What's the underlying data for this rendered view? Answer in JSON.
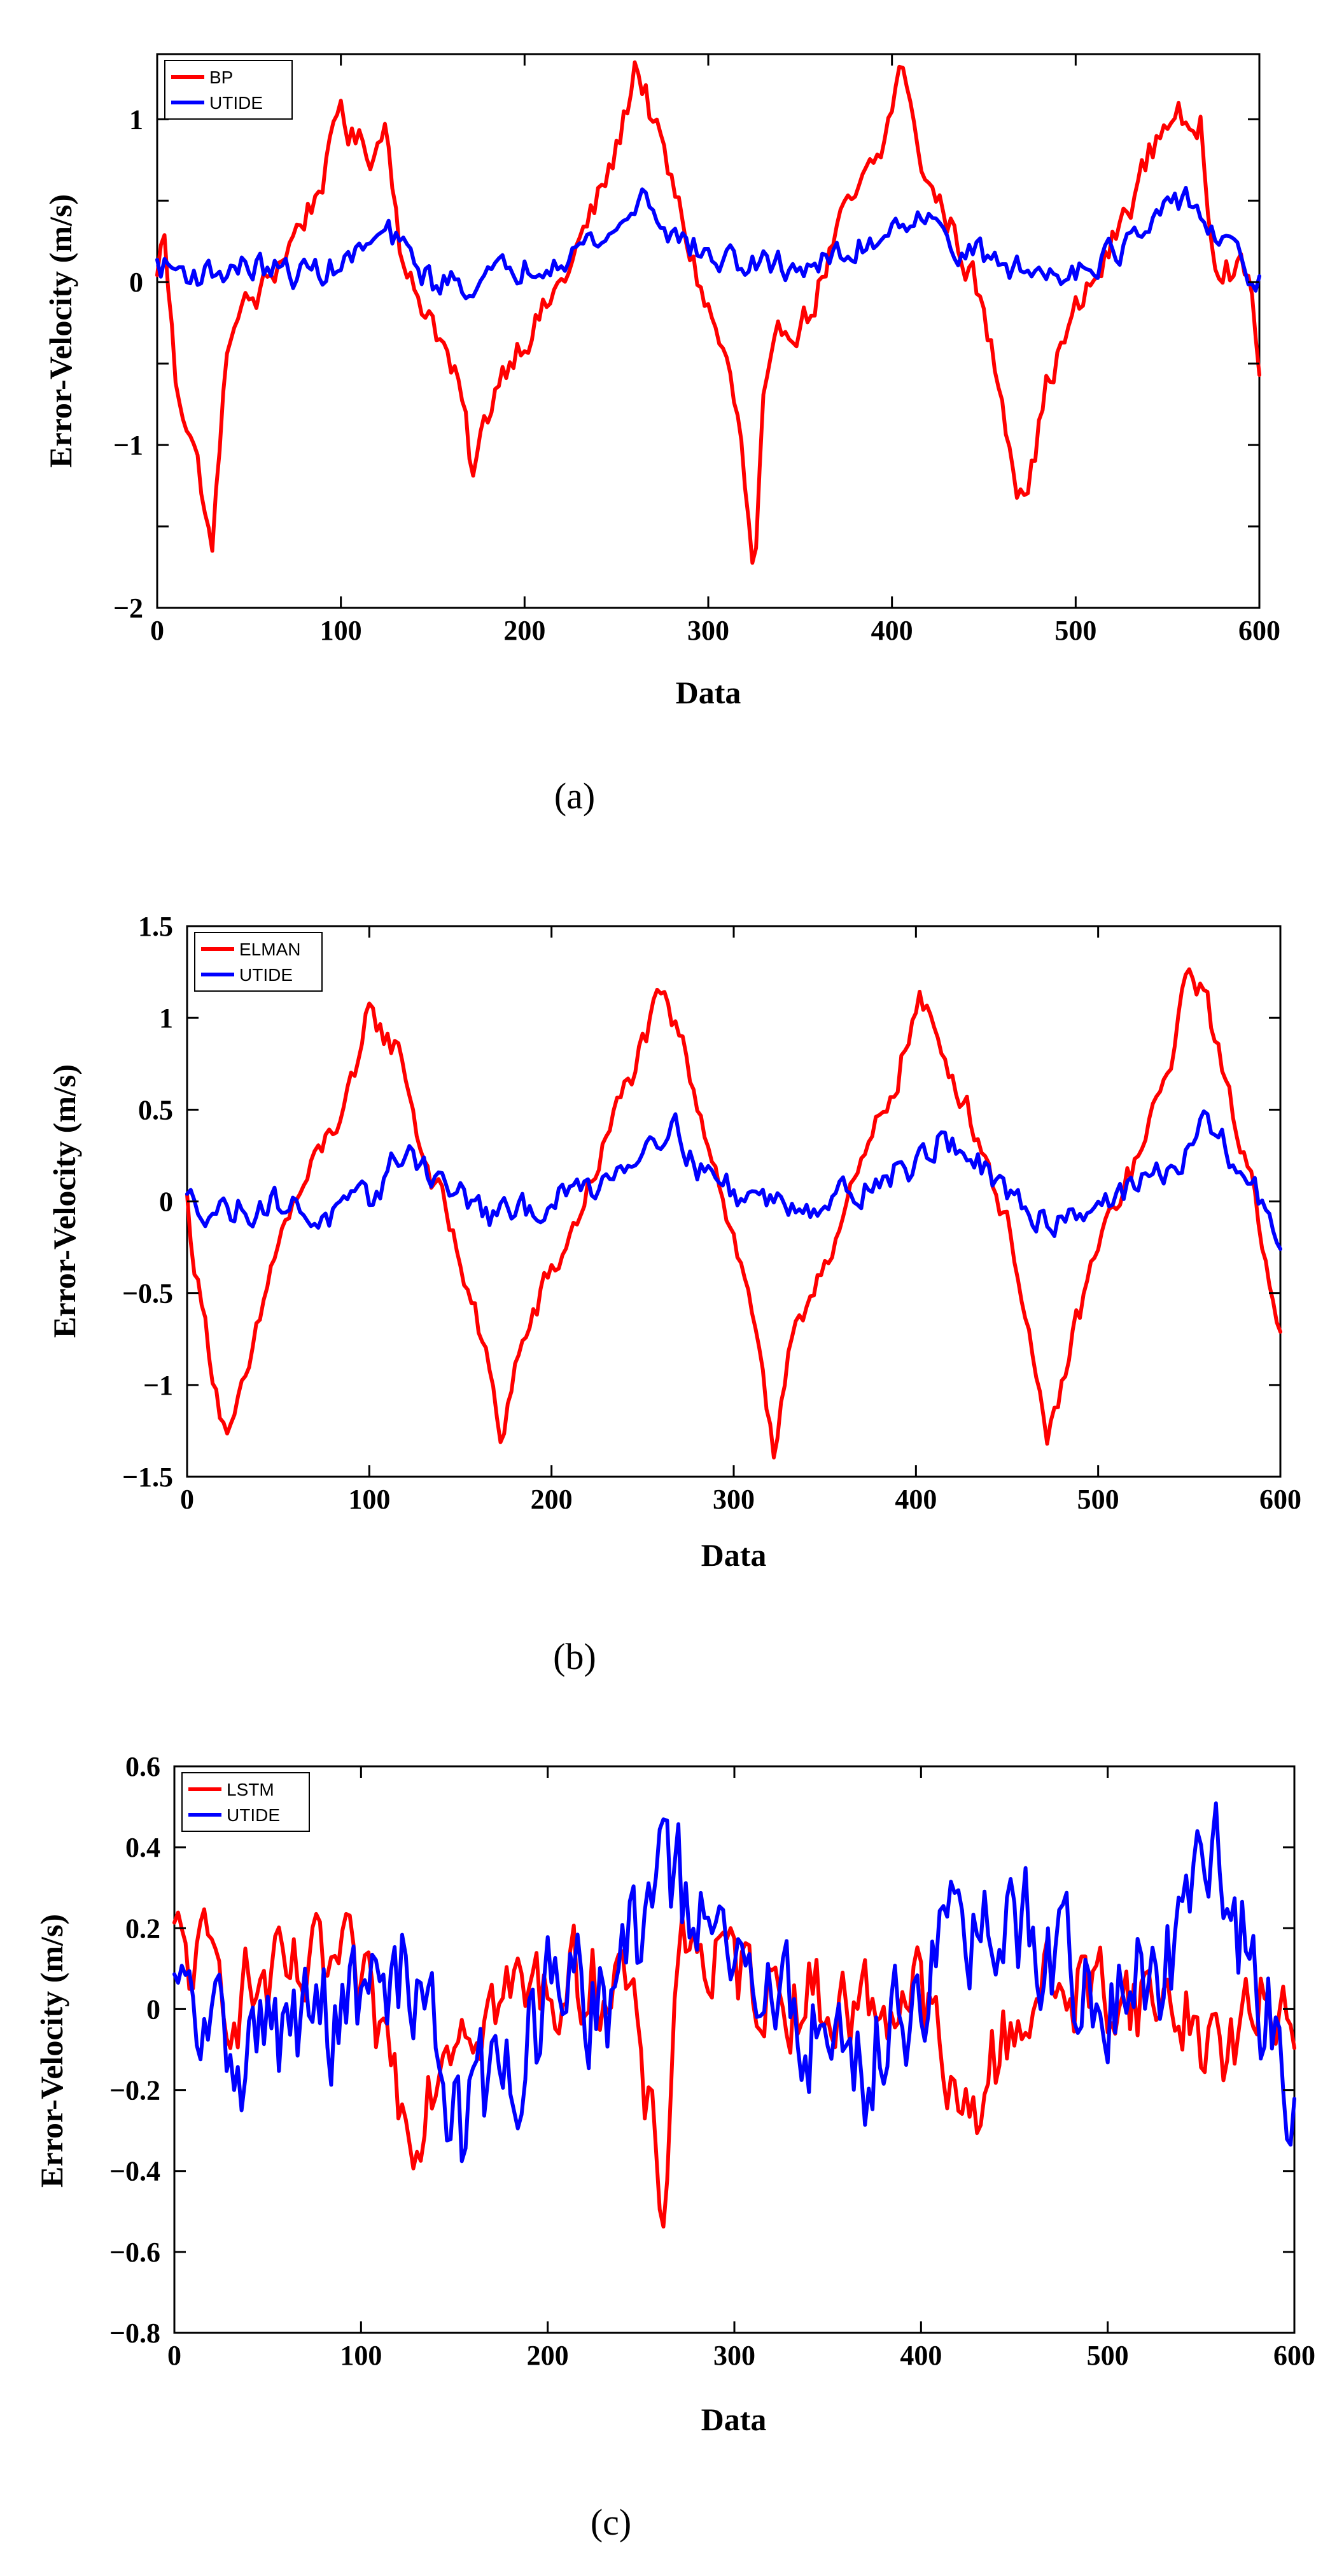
{
  "colors": {
    "red": "#ff0000",
    "blue": "#0000ff",
    "axis": "#000000"
  },
  "chart_data": [
    {
      "type": "line",
      "panel": "(a)",
      "title": "",
      "xlabel": "Data",
      "ylabel": "Error-Velocity (m/s)",
      "xlim": [
        0,
        600
      ],
      "ylim": [
        -2,
        1.4
      ],
      "xticks": [
        0,
        100,
        200,
        300,
        400,
        500,
        600
      ],
      "xtick_labels": [
        "0",
        "100",
        "200",
        "300",
        "400",
        "500",
        "600"
      ],
      "yticks": [
        1,
        0.5,
        0,
        -0.5,
        -1,
        -1.5,
        -2
      ],
      "ytick_labels": [
        "1",
        "",
        "0",
        "",
        "−1",
        "",
        "−2"
      ],
      "legend": {
        "position": "top-left",
        "entries": [
          "BP",
          "UTIDE"
        ]
      },
      "series": [
        {
          "name": "BP",
          "color": "#ff0000",
          "noise": 0.18,
          "x": [
            0,
            3,
            10,
            18,
            25,
            30,
            35,
            42,
            55,
            70,
            85,
            95,
            100,
            105,
            110,
            118,
            125,
            135,
            150,
            165,
            172,
            178,
            185,
            195,
            210,
            225,
            240,
            250,
            256,
            260,
            265,
            272,
            280,
            295,
            310,
            318,
            325,
            330,
            340,
            355,
            370,
            385,
            395,
            402,
            406,
            412,
            420,
            430,
            445,
            460,
            468,
            475,
            485,
            500,
            515,
            530,
            545,
            555,
            562,
            568,
            575,
            585,
            595,
            600
          ],
          "y": [
            0.0,
            0.4,
            -0.6,
            -0.9,
            -1.3,
            -1.7,
            -0.8,
            -0.2,
            -0.1,
            0.2,
            0.5,
            0.8,
            1.1,
            0.9,
            0.85,
            0.8,
            1.0,
            0.0,
            -0.2,
            -0.7,
            -1.2,
            -0.9,
            -0.6,
            -0.4,
            -0.2,
            0.1,
            0.5,
            0.8,
            1.1,
            1.35,
            1.2,
            0.9,
            0.6,
            0.0,
            -0.5,
            -1.0,
            -1.9,
            -0.8,
            -0.3,
            -0.2,
            0.3,
            0.6,
            0.8,
            1.2,
            1.35,
            0.9,
            0.6,
            0.4,
            0.0,
            -0.7,
            -1.2,
            -1.2,
            -0.6,
            -0.2,
            0.1,
            0.5,
            0.9,
            1.1,
            0.8,
            1.0,
            0.2,
            0.1,
            0.0,
            -0.5
          ]
        },
        {
          "name": "UTIDE",
          "color": "#0000ff",
          "noise": 0.15,
          "x": [
            0,
            25,
            50,
            75,
            100,
            125,
            150,
            175,
            200,
            225,
            250,
            265,
            280,
            300,
            325,
            350,
            375,
            400,
            415,
            425,
            440,
            460,
            480,
            500,
            525,
            545,
            560,
            575,
            590,
            600
          ],
          "y": [
            0.1,
            0.05,
            0.1,
            0.05,
            0.1,
            0.3,
            0.0,
            0.0,
            0.1,
            0.2,
            0.3,
            0.55,
            0.3,
            0.15,
            0.1,
            0.1,
            0.15,
            0.35,
            0.45,
            0.3,
            0.2,
            0.1,
            0.05,
            0.1,
            0.2,
            0.35,
            0.55,
            0.3,
            0.1,
            0.0
          ]
        }
      ]
    },
    {
      "type": "line",
      "panel": "(b)",
      "title": "",
      "xlabel": "Data",
      "ylabel": "Error-Velocity (m/s)",
      "xlim": [
        0,
        600
      ],
      "ylim": [
        -1.5,
        1.5
      ],
      "xticks": [
        0,
        100,
        200,
        300,
        400,
        500,
        600
      ],
      "xtick_labels": [
        "0",
        "100",
        "200",
        "300",
        "400",
        "500",
        "600"
      ],
      "yticks": [
        1.5,
        1,
        0.5,
        0,
        -0.5,
        -1,
        -1.5
      ],
      "ytick_labels": [
        "1.5",
        "1",
        "0.5",
        "0",
        "−0.5",
        "−1",
        "−1.5"
      ],
      "legend": {
        "position": "top-left",
        "entries": [
          "ELMAN",
          "UTIDE"
        ]
      },
      "series": [
        {
          "name": "ELMAN",
          "color": "#ff0000",
          "noise": 0.14,
          "x": [
            0,
            5,
            12,
            20,
            25,
            35,
            50,
            65,
            80,
            95,
            100,
            108,
            118,
            128,
            140,
            155,
            165,
            172,
            180,
            195,
            210,
            225,
            240,
            252,
            260,
            270,
            285,
            300,
            315,
            322,
            330,
            345,
            360,
            375,
            390,
            402,
            410,
            425,
            440,
            455,
            465,
            472,
            480,
            495,
            510,
            525,
            535,
            545,
            550,
            560,
            570,
            585,
            600
          ],
          "y": [
            0.0,
            -0.4,
            -0.8,
            -1.2,
            -1.25,
            -0.9,
            -0.2,
            0.1,
            0.4,
            0.7,
            1.1,
            0.9,
            0.8,
            0.3,
            0.0,
            -0.5,
            -0.9,
            -1.3,
            -0.9,
            -0.5,
            -0.2,
            0.2,
            0.6,
            0.9,
            1.1,
            0.9,
            0.4,
            -0.2,
            -0.8,
            -1.45,
            -0.9,
            -0.4,
            -0.1,
            0.3,
            0.7,
            1.1,
            0.9,
            0.6,
            0.2,
            -0.3,
            -0.9,
            -1.4,
            -1.0,
            -0.4,
            0.0,
            0.3,
            0.6,
            1.0,
            1.3,
            1.1,
            0.6,
            0.1,
            -0.7
          ]
        },
        {
          "name": "UTIDE",
          "color": "#0000ff",
          "noise": 0.14,
          "x": [
            0,
            25,
            50,
            75,
            100,
            120,
            140,
            170,
            200,
            225,
            250,
            265,
            280,
            300,
            325,
            350,
            375,
            400,
            415,
            430,
            450,
            475,
            500,
            525,
            550,
            560,
            575,
            590,
            600
          ],
          "y": [
            0.0,
            -0.05,
            0.0,
            -0.1,
            0.0,
            0.3,
            0.1,
            -0.1,
            0.0,
            0.1,
            0.3,
            0.45,
            0.2,
            0.05,
            0.0,
            0.0,
            0.1,
            0.2,
            0.35,
            0.25,
            0.0,
            -0.1,
            0.0,
            0.1,
            0.25,
            0.45,
            0.2,
            0.0,
            -0.2
          ]
        }
      ]
    },
    {
      "type": "line",
      "panel": "(c)",
      "title": "",
      "xlabel": "Data",
      "ylabel": "Error-Velocity (m/s)",
      "xlim": [
        0,
        600
      ],
      "ylim": [
        -0.8,
        0.6
      ],
      "xticks": [
        0,
        100,
        200,
        300,
        400,
        500,
        600
      ],
      "xtick_labels": [
        "0",
        "100",
        "200",
        "300",
        "400",
        "500",
        "600"
      ],
      "yticks": [
        0.6,
        0.4,
        0.2,
        0,
        -0.2,
        -0.4,
        -0.6,
        -0.8
      ],
      "ytick_labels": [
        "0.6",
        "0.4",
        "0.2",
        "0",
        "−0.2",
        "−0.4",
        "−0.6",
        "−0.8"
      ],
      "legend": {
        "position": "top-left",
        "entries": [
          "LSTM",
          "UTIDE"
        ]
      },
      "series": [
        {
          "name": "LSTM",
          "color": "#ff0000",
          "noise": 0.2,
          "x": [
            0,
            30,
            60,
            90,
            115,
            125,
            150,
            200,
            240,
            262,
            270,
            290,
            330,
            360,
            400,
            420,
            460,
            500,
            540,
            560,
            600
          ],
          "y": [
            0.15,
            0.05,
            0.05,
            0.1,
            -0.1,
            -0.3,
            0.0,
            0.05,
            0.1,
            -0.5,
            0.2,
            0.1,
            0.05,
            0.0,
            0.05,
            -0.3,
            0.05,
            0.05,
            0.0,
            -0.1,
            0.05
          ]
        },
        {
          "name": "UTIDE",
          "color": "#0000ff",
          "noise": 0.26,
          "x": [
            0,
            30,
            60,
            100,
            130,
            155,
            200,
            240,
            262,
            270,
            290,
            330,
            370,
            400,
            420,
            460,
            495,
            530,
            560,
            600
          ],
          "y": [
            0.0,
            -0.1,
            -0.05,
            0.0,
            0.1,
            -0.3,
            0.0,
            0.05,
            0.4,
            0.3,
            0.1,
            0.0,
            -0.15,
            0.1,
            0.15,
            0.2,
            0.0,
            0.1,
            0.35,
            -0.2
          ]
        }
      ]
    }
  ]
}
